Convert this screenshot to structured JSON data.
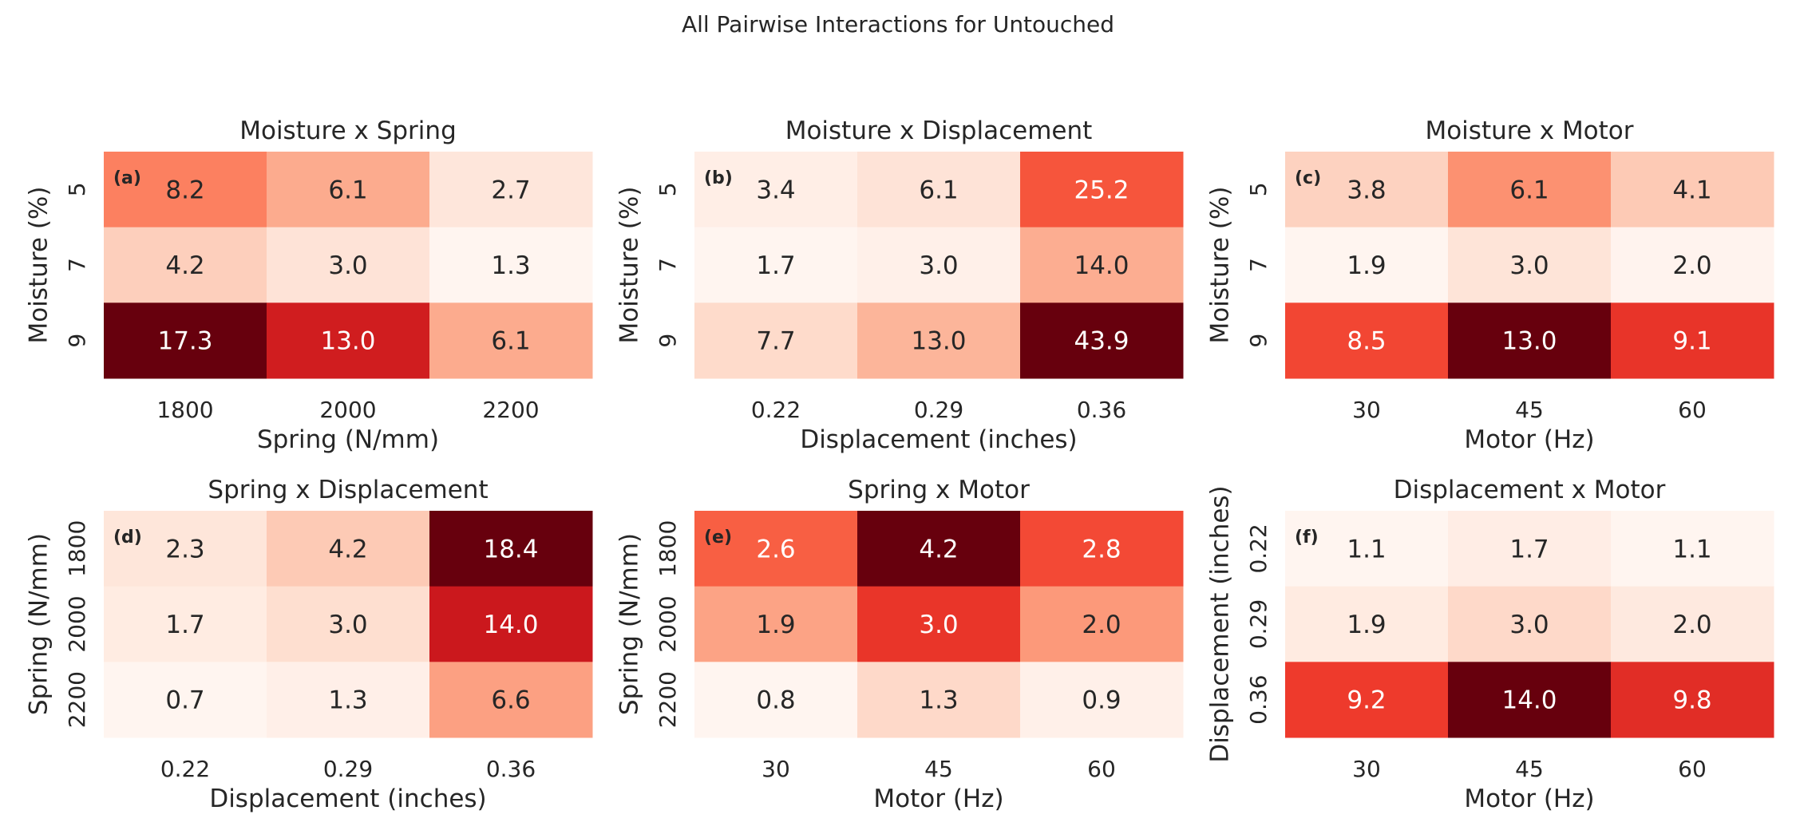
{
  "figure": {
    "suptitle": "All Pairwise Interactions for Untouched"
  },
  "chart_data": [
    {
      "type": "heatmap",
      "panel_label": "(a)",
      "title": "Moisture x Spring",
      "xlabel": "Spring (N/mm)",
      "ylabel": "Moisture (%)",
      "x_categories": [
        "1800",
        "2000",
        "2200"
      ],
      "y_categories": [
        "5",
        "7",
        "9"
      ],
      "values": [
        [
          8.2,
          6.1,
          2.7
        ],
        [
          4.2,
          3.0,
          1.3
        ],
        [
          17.3,
          13.0,
          6.1
        ]
      ],
      "colormap": "Reds",
      "colorbar": false
    },
    {
      "type": "heatmap",
      "panel_label": "(b)",
      "title": "Moisture x Displacement",
      "xlabel": "Displacement (inches)",
      "ylabel": "Moisture (%)",
      "x_categories": [
        "0.22",
        "0.29",
        "0.36"
      ],
      "y_categories": [
        "5",
        "7",
        "9"
      ],
      "values": [
        [
          3.4,
          6.1,
          25.2
        ],
        [
          1.7,
          3.0,
          14.0
        ],
        [
          7.7,
          13.0,
          43.9
        ]
      ],
      "colormap": "Reds",
      "colorbar": false
    },
    {
      "type": "heatmap",
      "panel_label": "(c)",
      "title": "Moisture x Motor",
      "xlabel": "Motor (Hz)",
      "ylabel": "Moisture (%)",
      "x_categories": [
        "30",
        "45",
        "60"
      ],
      "y_categories": [
        "5",
        "7",
        "9"
      ],
      "values": [
        [
          3.8,
          6.1,
          4.1
        ],
        [
          1.9,
          3.0,
          2.0
        ],
        [
          8.5,
          13.0,
          9.1
        ]
      ],
      "colormap": "Reds",
      "colorbar": false
    },
    {
      "type": "heatmap",
      "panel_label": "(d)",
      "title": "Spring x Displacement",
      "xlabel": "Displacement (inches)",
      "ylabel": "Spring (N/mm)",
      "x_categories": [
        "0.22",
        "0.29",
        "0.36"
      ],
      "y_categories": [
        "1800",
        "2000",
        "2200"
      ],
      "values": [
        [
          2.3,
          4.2,
          18.4
        ],
        [
          1.7,
          3.0,
          14.0
        ],
        [
          0.7,
          1.3,
          6.6
        ]
      ],
      "colormap": "Reds",
      "colorbar": false
    },
    {
      "type": "heatmap",
      "panel_label": "(e)",
      "title": "Spring x Motor",
      "xlabel": "Motor (Hz)",
      "ylabel": "Spring (N/mm)",
      "x_categories": [
        "30",
        "45",
        "60"
      ],
      "y_categories": [
        "1800",
        "2000",
        "2200"
      ],
      "values": [
        [
          2.6,
          4.2,
          2.8
        ],
        [
          1.9,
          3.0,
          2.0
        ],
        [
          0.8,
          1.3,
          0.9
        ]
      ],
      "colormap": "Reds",
      "colorbar": false
    },
    {
      "type": "heatmap",
      "panel_label": "(f)",
      "title": "Displacement x Motor",
      "xlabel": "Motor (Hz)",
      "ylabel": "Displacement (inches)",
      "x_categories": [
        "30",
        "45",
        "60"
      ],
      "y_categories": [
        "0.22",
        "0.29",
        "0.36"
      ],
      "values": [
        [
          1.1,
          1.7,
          1.1
        ],
        [
          1.9,
          3.0,
          2.0
        ],
        [
          9.2,
          14.0,
          9.8
        ]
      ],
      "colormap": "Reds",
      "colorbar": false
    }
  ]
}
